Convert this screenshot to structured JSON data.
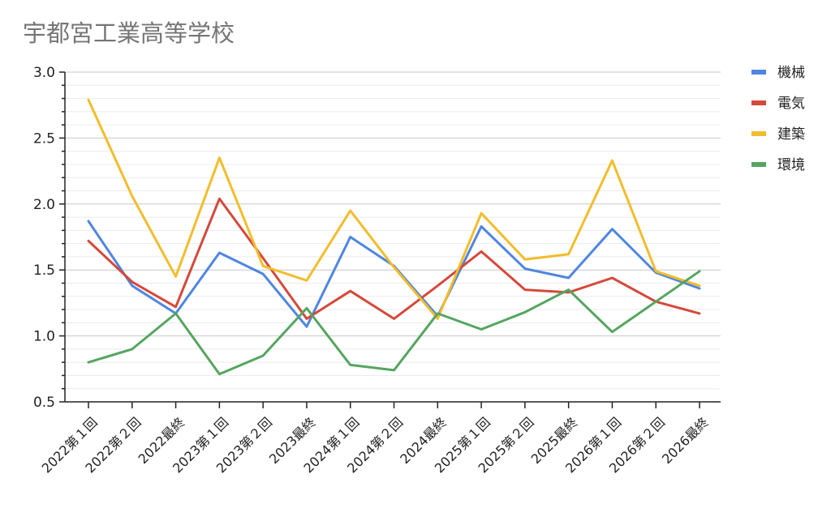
{
  "chart_data": {
    "type": "line",
    "title": "宇都宮工業高等学校",
    "xlabel": "",
    "ylabel": "",
    "ylim": [
      0.5,
      3.0
    ],
    "yticks": [
      "0.5",
      "1.0",
      "1.5",
      "2.0",
      "2.5",
      "3.0"
    ],
    "grid": true,
    "legend_position": "right",
    "categories": [
      "2022第１回",
      "2022第２回",
      "2022最終",
      "2023第１回",
      "2023第２回",
      "2023最終",
      "2024第１回",
      "2024第２回",
      "2024最終",
      "2025第１回",
      "2025第２回",
      "2025最終",
      "2026第１回",
      "2026第２回",
      "2026最終"
    ],
    "series": [
      {
        "name": "機械",
        "color": "#4f86e0",
        "values": [
          1.87,
          1.38,
          1.17,
          1.63,
          1.47,
          1.07,
          1.75,
          1.53,
          1.15,
          1.83,
          1.51,
          1.44,
          1.81,
          1.48,
          1.36
        ]
      },
      {
        "name": "電気",
        "color": "#d4493b",
        "values": [
          1.72,
          1.41,
          1.22,
          2.04,
          1.59,
          1.13,
          1.34,
          1.13,
          1.38,
          1.64,
          1.35,
          1.33,
          1.44,
          1.26,
          1.17
        ]
      },
      {
        "name": "建築",
        "color": "#f2bd2c",
        "values": [
          2.79,
          2.06,
          1.45,
          2.35,
          1.53,
          1.42,
          1.95,
          1.52,
          1.13,
          1.93,
          1.58,
          1.62,
          2.33,
          1.49,
          1.38
        ]
      },
      {
        "name": "環境",
        "color": "#55a560",
        "values": [
          0.8,
          0.9,
          1.17,
          0.71,
          0.85,
          1.21,
          0.78,
          0.74,
          1.17,
          1.05,
          1.18,
          1.35,
          1.03,
          1.26,
          1.49
        ]
      }
    ]
  }
}
